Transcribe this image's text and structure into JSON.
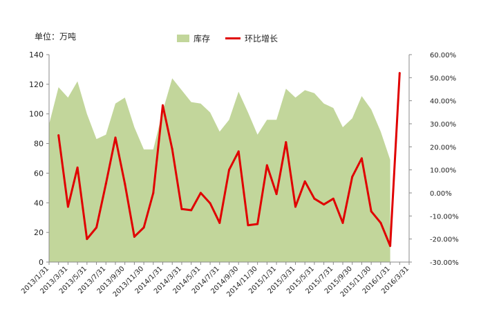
{
  "chart_data": {
    "type": "area+line",
    "unit_label": "单位：万吨",
    "x": [
      "2013/1/31",
      "2013/2/28",
      "2013/3/31",
      "2013/4/30",
      "2013/5/31",
      "2013/6/30",
      "2013/7/31",
      "2013/8/31",
      "2013/9/30",
      "2013/10/31",
      "2013/11/30",
      "2013/12/31",
      "2014/1/31",
      "2014/2/28",
      "2014/3/31",
      "2014/4/30",
      "2014/5/31",
      "2014/6/30",
      "2014/7/31",
      "2014/8/31",
      "2014/9/30",
      "2014/10/31",
      "2014/11/30",
      "2014/12/31",
      "2015/1/31",
      "2015/2/28",
      "2015/3/31",
      "2015/4/30",
      "2015/5/31",
      "2015/6/30",
      "2015/7/31",
      "2015/8/31",
      "2015/9/30",
      "2015/10/31",
      "2015/11/30",
      "2015/12/31",
      "2016/1/31",
      "2016/2/29",
      "2016/3/31"
    ],
    "tick_labels": [
      "2013/1/31",
      "2013/3/31",
      "2013/5/31",
      "2013/7/31",
      "2013/9/30",
      "2013/11/30",
      "2014/1/31",
      "2014/3/31",
      "2014/5/31",
      "2014/7/31",
      "2014/9/30",
      "2014/11/30",
      "2015/1/31",
      "2015/3/31",
      "2015/5/31",
      "2015/7/31",
      "2015/9/30",
      "2015/11/30",
      "2016/1/31",
      "2016/3/31"
    ],
    "series": [
      {
        "name": "库存",
        "kind": "area",
        "axis": "left",
        "color": "#c2d69b",
        "values": [
          93,
          118,
          111,
          122,
          100,
          83,
          86,
          107,
          111,
          91,
          76,
          76,
          102,
          124,
          116,
          108,
          107,
          101,
          88,
          96,
          115,
          101,
          86,
          96,
          96,
          117,
          111,
          116,
          114,
          107,
          104,
          91,
          97,
          112,
          103,
          88,
          69,
          null,
          null
        ]
      },
      {
        "name": "环比增长",
        "kind": "line",
        "axis": "right",
        "color": "#e00000",
        "values": [
          null,
          25,
          -6,
          11,
          -20,
          -15,
          4,
          24,
          4,
          -19,
          -15,
          0,
          38,
          19,
          -7,
          -7.5,
          0,
          -4.5,
          -13,
          10,
          18,
          -14,
          -13.5,
          12,
          -0.5,
          22,
          -6,
          5,
          -2.5,
          -5,
          -2.5,
          -13,
          7,
          15,
          -8,
          -13,
          -23,
          52,
          null
        ]
      }
    ],
    "y_left": {
      "min": 0,
      "max": 140,
      "step": 20,
      "tick_labels": [
        "0",
        "20",
        "40",
        "60",
        "80",
        "100",
        "120",
        "140"
      ]
    },
    "y_right": {
      "min": -30,
      "max": 60,
      "step": 10,
      "tick_labels": [
        "-30.00%",
        "-20.00%",
        "-10.00%",
        "0.00%",
        "10.00%",
        "20.00%",
        "30.00%",
        "40.00%",
        "50.00%",
        "60.00%"
      ]
    },
    "legend": {
      "position": "top-center",
      "items": [
        "库存",
        "环比增长"
      ]
    },
    "grid": false
  }
}
